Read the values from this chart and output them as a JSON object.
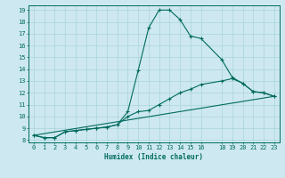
{
  "xlabel": "Humidex (Indice chaleur)",
  "ylabel": "",
  "bg_color": "#cde8f0",
  "grid_color": "#a8d4d8",
  "line_color": "#006b5e",
  "xlim": [
    -0.5,
    23.5
  ],
  "ylim": [
    7.8,
    19.4
  ],
  "xticks": [
    0,
    1,
    2,
    3,
    4,
    5,
    6,
    7,
    8,
    9,
    10,
    11,
    12,
    13,
    14,
    15,
    16,
    18,
    19,
    20,
    21,
    22,
    23
  ],
  "yticks": [
    8,
    9,
    10,
    11,
    12,
    13,
    14,
    15,
    16,
    17,
    18,
    19
  ],
  "line1_x": [
    0,
    1,
    2,
    3,
    4,
    5,
    6,
    7,
    8,
    9,
    10,
    11,
    12,
    13,
    14,
    15,
    16,
    18,
    19,
    20,
    21,
    22,
    23
  ],
  "line1_y": [
    8.4,
    8.2,
    8.2,
    8.7,
    8.8,
    8.9,
    9.0,
    9.1,
    9.3,
    10.4,
    13.9,
    17.5,
    19.0,
    19.0,
    18.2,
    16.8,
    16.6,
    14.8,
    13.3,
    12.8,
    12.1,
    12.0,
    11.7
  ],
  "line2_x": [
    0,
    1,
    2,
    3,
    4,
    5,
    6,
    7,
    8,
    9,
    10,
    11,
    12,
    13,
    14,
    15,
    16,
    18,
    19,
    20,
    21,
    22,
    23
  ],
  "line2_y": [
    8.4,
    8.2,
    8.2,
    8.7,
    8.8,
    8.9,
    9.0,
    9.1,
    9.3,
    10.0,
    10.4,
    10.5,
    11.0,
    11.5,
    12.0,
    12.3,
    12.7,
    13.0,
    13.2,
    12.8,
    12.1,
    12.0,
    11.7
  ],
  "line3_x": [
    0,
    23
  ],
  "line3_y": [
    8.4,
    11.7
  ],
  "tick_fontsize": 5.0,
  "xlabel_fontsize": 5.5,
  "marker_size": 3.0,
  "lw": 0.8
}
